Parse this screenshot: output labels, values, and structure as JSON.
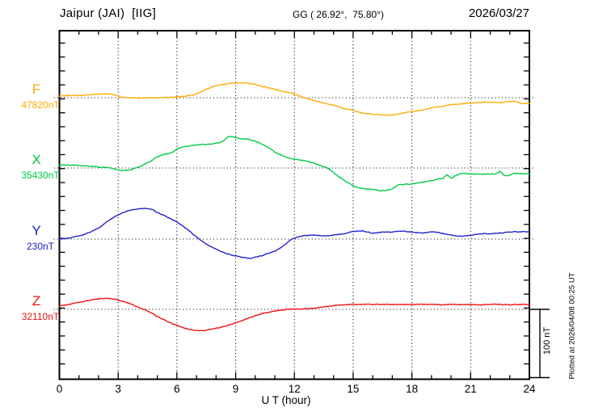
{
  "header": {
    "station_title": "Jaipur (JAI)  [IIG]",
    "coordinates": "GG ( 26.92°,  75.80°)",
    "date": "2026/03/27"
  },
  "axis": {
    "x_label": "U T (hour)",
    "x_ticks": [
      0,
      3,
      6,
      9,
      12,
      15,
      18,
      21,
      24
    ]
  },
  "scale_bar": {
    "label": "100 nT",
    "span_nT": 100
  },
  "footer": {
    "plotted_at": "Plotted at 2026/04/08 00:25 UT"
  },
  "chart_data": {
    "type": "line",
    "title": "Magnetogram Jaipur (JAI) [IIG] 2026/03/27",
    "xlabel": "U T (hour)",
    "xlim": [
      0,
      24
    ],
    "x_major_tick_hours": 3,
    "x_minor_tick_hours": 1,
    "grid": "dotted vertical lines every 3 h; dotted horizontal baseline per trace",
    "legend_position": "left margin, one colored letter + base value per trace",
    "nT_per_side_tick": 20,
    "series": [
      {
        "name": "F",
        "color": "#ffaa00",
        "base_label": "47820nT",
        "base_nT": 47820,
        "hours": [
          0,
          0.5,
          1,
          1.5,
          2,
          2.3,
          2.7,
          3,
          3.3,
          3.7,
          4,
          4.5,
          5,
          5.5,
          6,
          6.5,
          7,
          7.5,
          8,
          8.5,
          9,
          9.3,
          9.7,
          10,
          10.5,
          11,
          11.5,
          12,
          12.5,
          13,
          13.5,
          14,
          14.5,
          15,
          15.5,
          16,
          16.5,
          17,
          17.5,
          18,
          18.5,
          19,
          19.5,
          20,
          20.5,
          21,
          21.5,
          22,
          22.5,
          23,
          23.3,
          23.6,
          24
        ],
        "delta_nT": [
          2.5,
          3,
          3,
          4,
          5,
          5.5,
          5,
          2.5,
          0.5,
          0,
          -0.5,
          0,
          0,
          0.5,
          1,
          2.5,
          5.5,
          12,
          17,
          19.5,
          21,
          21.5,
          20.5,
          18.5,
          15.5,
          12,
          8.5,
          5.5,
          0,
          -4,
          -7.5,
          -11,
          -15,
          -18,
          -22,
          -23.5,
          -24.5,
          -24.5,
          -22,
          -19.5,
          -18,
          -14.5,
          -12.5,
          -10,
          -8.5,
          -7.5,
          -6.5,
          -6.5,
          -7,
          -5.5,
          -5,
          -8,
          -7.5
        ]
      },
      {
        "name": "X",
        "color": "#00cc44",
        "base_label": "35430nT",
        "base_nT": 35430,
        "hours": [
          0,
          0.5,
          1,
          1.5,
          2,
          2.5,
          3,
          3.3,
          3.6,
          4,
          4.3,
          4.7,
          5,
          5.3,
          5.7,
          6,
          6.3,
          6.7,
          7,
          7.3,
          7.7,
          8,
          8.3,
          8.5,
          8.7,
          9,
          9.3,
          9.6,
          10,
          10.3,
          10.7,
          11,
          11.3,
          11.7,
          12,
          12.3,
          12.7,
          13,
          13.3,
          13.7,
          14,
          14.5,
          15,
          15.3,
          15.6,
          16,
          16.3,
          16.7,
          17,
          17.3,
          17.5,
          18,
          18.5,
          19,
          19.3,
          19.6,
          19.8,
          20,
          20.3,
          20.6,
          21,
          21.5,
          22,
          22.3,
          22.5,
          22.8,
          23.2,
          23.5,
          24
        ],
        "delta_nT": [
          4.5,
          4,
          3.5,
          2.5,
          1.5,
          0.5,
          -2.5,
          -3.5,
          -2.5,
          1,
          4.5,
          10.5,
          16,
          19,
          21.5,
          26.5,
          30,
          31.5,
          33,
          33.5,
          34,
          35,
          37,
          42,
          45,
          43,
          42,
          41,
          38,
          34.5,
          28.5,
          23,
          18.5,
          14.5,
          13,
          11,
          9,
          6.5,
          3.5,
          -0.5,
          -7,
          -16.5,
          -25.5,
          -28,
          -30,
          -30,
          -32,
          -32,
          -29.5,
          -24,
          -23.5,
          -22.5,
          -20.5,
          -18,
          -16,
          -14.5,
          -10,
          -14.5,
          -10,
          -7.5,
          -8.5,
          -8.5,
          -8.5,
          -8,
          -5,
          -11.5,
          -7.5,
          -8,
          -8.5
        ]
      },
      {
        "name": "Y",
        "color": "#2222cc",
        "base_label": "230nT",
        "base_nT": 230,
        "hours": [
          0,
          0.5,
          1,
          1.5,
          2,
          2.5,
          3,
          3.5,
          4,
          4.3,
          4.7,
          5,
          5.5,
          6,
          6.5,
          7,
          7.5,
          8,
          8.5,
          9,
          9.5,
          9.7,
          10,
          10.5,
          11,
          11.3,
          11.7,
          12,
          12.5,
          13,
          13.5,
          14,
          14.5,
          15,
          15.3,
          15.7,
          16,
          16.5,
          17,
          17.4,
          18,
          18.5,
          19,
          19.5,
          20,
          20.5,
          21,
          21.5,
          22,
          22.5,
          23,
          23.5,
          24
        ],
        "delta_nT": [
          0,
          1.5,
          4.5,
          9,
          16,
          26,
          34.5,
          40,
          43,
          43.5,
          42.5,
          38,
          31.5,
          24,
          14.5,
          3,
          -7,
          -14.5,
          -20,
          -24,
          -26.5,
          -27.5,
          -26,
          -22,
          -17,
          -12.5,
          -3.5,
          1.5,
          4.5,
          5.5,
          4.5,
          5.5,
          7.5,
          10.5,
          11.5,
          10.5,
          8.5,
          10,
          10,
          11.5,
          10,
          8.5,
          10,
          8.5,
          5.5,
          4.5,
          5.5,
          7.5,
          7.5,
          8.5,
          10,
          10.5,
          10.5
        ]
      },
      {
        "name": "Z",
        "color": "#ee1111",
        "base_label": "32110nT",
        "base_nT": 32110,
        "hours": [
          0,
          0.5,
          1,
          1.5,
          2,
          2.3,
          2.7,
          3,
          3.5,
          4,
          4.3,
          4.7,
          5,
          5.5,
          6,
          6.5,
          7,
          7.3,
          7.7,
          8,
          8.5,
          9,
          9.5,
          10,
          10.5,
          11,
          11.5,
          12,
          12.5,
          13,
          13.5,
          14,
          14.5,
          15,
          15.5,
          16,
          16.5,
          17,
          17.5,
          18,
          18.5,
          19,
          19.5,
          20,
          20.5,
          21,
          21.5,
          22,
          22.5,
          23,
          23.5,
          24
        ],
        "delta_nT": [
          5,
          7,
          10,
          12.5,
          15,
          15.5,
          15,
          13,
          9,
          3.5,
          0,
          -5,
          -10,
          -17,
          -23,
          -27.5,
          -30,
          -30.5,
          -28.5,
          -27,
          -23.5,
          -19,
          -14,
          -9,
          -5,
          -2.5,
          -0.5,
          0.5,
          0.5,
          1.5,
          3.5,
          5,
          6.5,
          7,
          7,
          7,
          7,
          7,
          7,
          7,
          7,
          7,
          6.5,
          7,
          7,
          7,
          6.5,
          7,
          7,
          6.5,
          7,
          7
        ]
      }
    ]
  }
}
